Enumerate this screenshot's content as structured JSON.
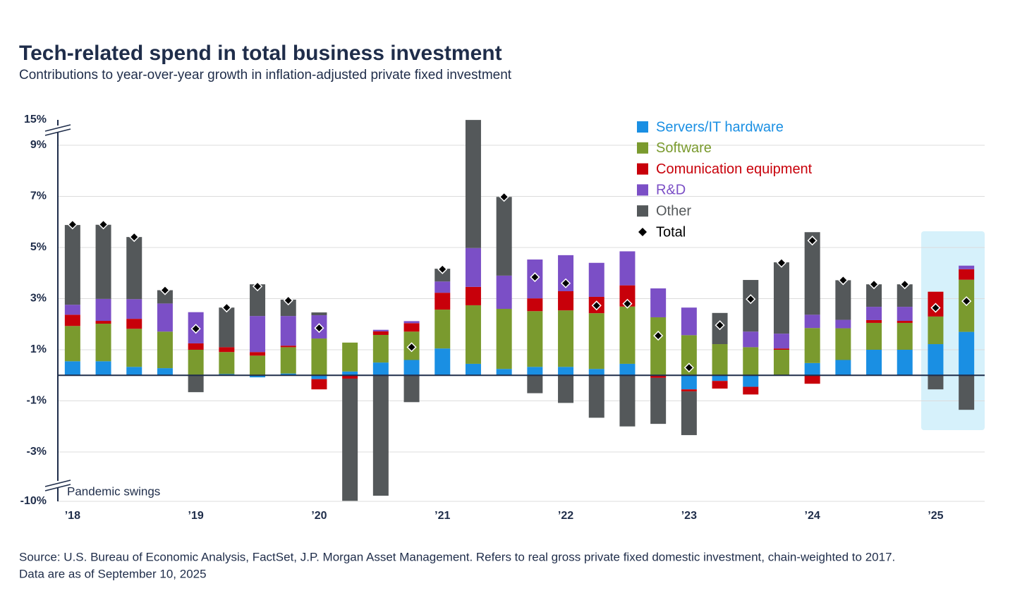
{
  "chart_data": {
    "type": "stacked_bar",
    "title": "Tech-related spend in total business investment",
    "subtitle": "Contributions to year-over-year growth in inflation-adjusted private fixed investment",
    "annotation": "Pandemic swings",
    "source": [
      "Source: U.S. Bureau of Economic Analysis, FactSet, J.P. Morgan Asset Management. Refers to real gross private fixed domestic investment, chain-weighted to 2017.",
      "Data are as of September 10, 2025"
    ],
    "categories": [
      "’18",
      null,
      null,
      null,
      "’19",
      null,
      null,
      null,
      "’20",
      null,
      null,
      null,
      "’21",
      null,
      null,
      null,
      "’22",
      null,
      null,
      null,
      "’23",
      null,
      null,
      null,
      "’24",
      null,
      null,
      null,
      "’25",
      null
    ],
    "series": [
      {
        "name": "Servers/IT hardware",
        "color": "#1a8fe3",
        "values": [
          0.55,
          0.55,
          0.33,
          0.28,
          0,
          0.05,
          -0.08,
          0.07,
          -0.15,
          0.15,
          0.5,
          0.6,
          1.05,
          0.45,
          0.25,
          0.33,
          0.33,
          0.25,
          0.45,
          0,
          -0.55,
          -0.22,
          -0.45,
          0,
          0.48,
          0.6,
          1.0,
          1.0,
          1.22,
          1.7
        ]
      },
      {
        "name": "Software",
        "color": "#7a9a2e",
        "values": [
          1.38,
          1.47,
          1.49,
          1.43,
          1.0,
          0.86,
          0.77,
          1.03,
          1.44,
          1.13,
          1.08,
          1.11,
          1.52,
          2.29,
          2.35,
          2.18,
          2.21,
          2.18,
          2.24,
          2.27,
          1.57,
          1.22,
          1.1,
          1.0,
          1.37,
          1.24,
          1.05,
          1.05,
          1.08,
          2.04
        ]
      },
      {
        "name": "Comunication equipment",
        "color": "#c8000a",
        "values": [
          0.44,
          0.11,
          0.39,
          0,
          0.25,
          0.19,
          0.14,
          0.06,
          -0.4,
          -0.13,
          0.14,
          0.33,
          0.66,
          0.72,
          0,
          0.5,
          0.75,
          0.64,
          0.83,
          -0.1,
          -0.08,
          -0.3,
          -0.3,
          0.05,
          -0.33,
          0,
          0.11,
          0.08,
          0.97,
          0.41
        ]
      },
      {
        "name": "R&D",
        "color": "#7b4fc6",
        "values": [
          0.39,
          0.86,
          0.77,
          1.1,
          1.22,
          0,
          1.41,
          1.16,
          0.91,
          0,
          0.06,
          0.08,
          0.44,
          1.52,
          1.3,
          1.52,
          1.41,
          1.33,
          1.33,
          1.13,
          1.08,
          0,
          0.61,
          0.58,
          0.52,
          0.33,
          0.52,
          0.55,
          0,
          0.14
        ]
      },
      {
        "name": "Other",
        "color": "#54585a",
        "values": [
          3.12,
          2.9,
          2.43,
          0.52,
          -0.66,
          1.55,
          1.24,
          0.64,
          0.11,
          -9.8,
          -9.2,
          -1.05,
          0.5,
          10,
          3.08,
          -0.7,
          -1.08,
          -1.66,
          -2.0,
          -1.8,
          -1.71,
          1.22,
          2.02,
          2.79,
          3.23,
          1.55,
          0.88,
          0.88,
          -0.55,
          -1.35
        ]
      },
      {
        "name": "Total",
        "color": "#000000",
        "marker": "diamond",
        "values": [
          5.9,
          5.9,
          5.41,
          3.33,
          1.82,
          2.65,
          3.48,
          2.93,
          1.85,
          null,
          null,
          1.1,
          4.15,
          null,
          6.98,
          3.84,
          3.6,
          2.73,
          2.8,
          1.55,
          0.3,
          1.96,
          2.98,
          4.4,
          5.27,
          3.72,
          3.56,
          3.56,
          2.64,
          2.9
        ]
      }
    ],
    "ylim": [
      -10,
      15
    ],
    "yticks": [
      {
        "value": 15,
        "label": "15%"
      },
      {
        "value": 9,
        "label": "9%"
      },
      {
        "value": 7,
        "label": "7%"
      },
      {
        "value": 5,
        "label": "5%"
      },
      {
        "value": 3,
        "label": "3%"
      },
      {
        "value": 1,
        "label": "1%"
      },
      {
        "value": -1,
        "label": "-1%"
      },
      {
        "value": -3,
        "label": "-3%"
      },
      {
        "value": -10,
        "label": "-10%"
      }
    ],
    "axis_breaks": true,
    "grid": true,
    "legend": "top-right"
  }
}
